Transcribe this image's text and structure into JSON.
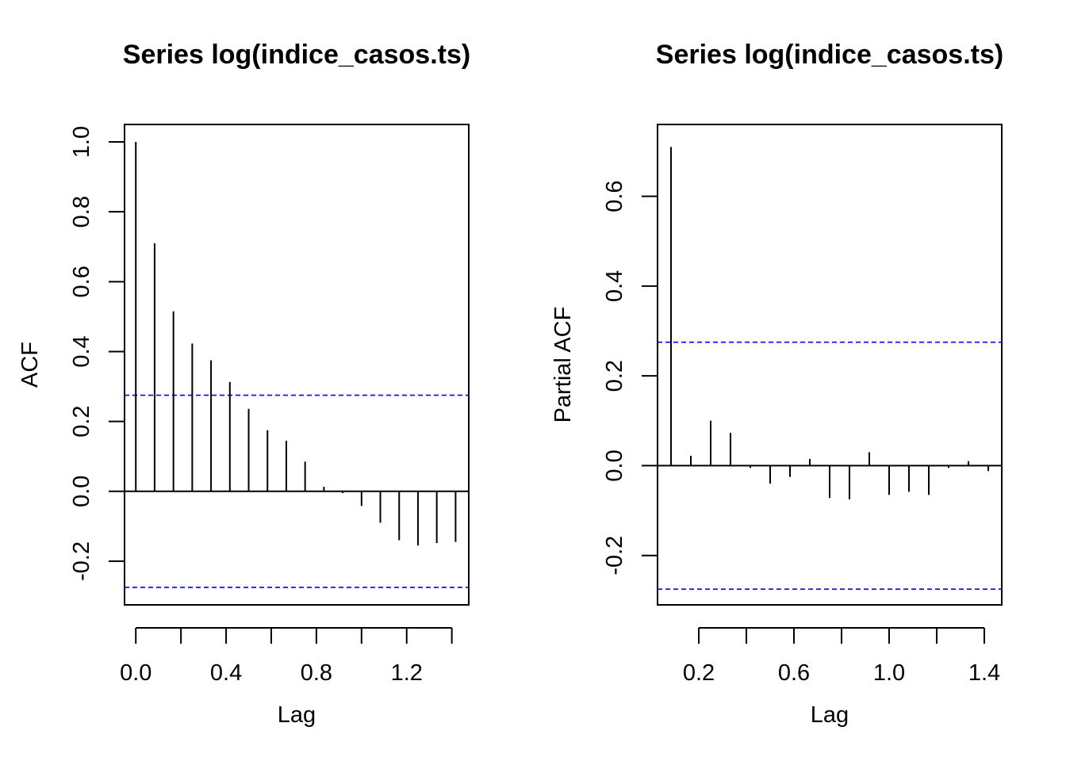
{
  "chart_data": [
    {
      "type": "bar",
      "title": "Series  log(indice_casos.ts)",
      "xlabel": "Lag",
      "ylabel": "ACF",
      "x": [
        0.0,
        0.0833,
        0.1667,
        0.25,
        0.3333,
        0.4167,
        0.5,
        0.5833,
        0.6667,
        0.75,
        0.8333,
        0.9167,
        1.0,
        1.0833,
        1.1667,
        1.25,
        1.3333,
        1.4167
      ],
      "values": [
        1.0,
        0.71,
        0.515,
        0.423,
        0.375,
        0.313,
        0.236,
        0.175,
        0.145,
        0.085,
        0.013,
        -0.005,
        -0.042,
        -0.09,
        -0.14,
        -0.155,
        -0.148,
        -0.145
      ],
      "xlim": [
        -0.05,
        1.475
      ],
      "ylim": [
        -0.325,
        1.05
      ],
      "xticks": [
        0.0,
        0.2,
        0.4,
        0.6,
        0.8,
        1.0,
        1.2,
        1.4
      ],
      "xtick_labels": [
        "0.0",
        "",
        "0.4",
        "",
        "0.8",
        "",
        "1.2",
        ""
      ],
      "yticks": [
        -0.2,
        0.0,
        0.2,
        0.4,
        0.6,
        0.8,
        1.0
      ],
      "ytick_labels": [
        "-0.2",
        "0.0",
        "0.2",
        "0.4",
        "0.6",
        "0.8",
        "1.0"
      ],
      "conf_limit": 0.275,
      "conf_color": "#0000ff",
      "grid": false
    },
    {
      "type": "bar",
      "title": "Series  log(indice_casos.ts)",
      "xlabel": "Lag",
      "ylabel": "Partial ACF",
      "x": [
        0.0833,
        0.1667,
        0.25,
        0.3333,
        0.4167,
        0.5,
        0.5833,
        0.6667,
        0.75,
        0.8333,
        0.9167,
        1.0,
        1.0833,
        1.1667,
        1.25,
        1.3333,
        1.4167
      ],
      "values": [
        0.71,
        0.022,
        0.1,
        0.073,
        -0.005,
        -0.04,
        -0.025,
        0.015,
        -0.072,
        -0.075,
        0.03,
        -0.065,
        -0.058,
        -0.065,
        -0.005,
        0.01,
        -0.012
      ],
      "xlim": [
        0.0267,
        1.4733
      ],
      "ylim": [
        -0.31,
        0.76
      ],
      "xticks": [
        0.2,
        0.4,
        0.6,
        0.8,
        1.0,
        1.2,
        1.4
      ],
      "xtick_labels": [
        "0.2",
        "",
        "0.6",
        "",
        "1.0",
        "",
        "1.4"
      ],
      "yticks": [
        -0.2,
        0.0,
        0.2,
        0.4,
        0.6
      ],
      "ytick_labels": [
        "-0.2",
        "0.0",
        "0.2",
        "0.4",
        "0.6"
      ],
      "conf_limit": 0.275,
      "conf_color": "#0000ff",
      "grid": false
    }
  ]
}
